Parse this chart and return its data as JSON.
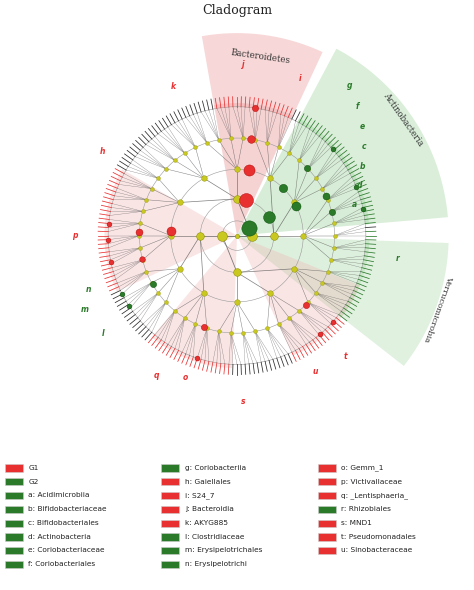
{
  "title": "Cladogram",
  "title_fontsize": 9,
  "background_color": "#ffffff",
  "red_color": "#e83030",
  "green_color": "#2a7a2a",
  "dark_green": "#1a5a1a",
  "yellow_color": "#b8b820",
  "yellow_node": "#c8c820",
  "yellow_edge": "#909000",
  "light_red": "#f0b0b0",
  "light_green": "#a8d8a8",
  "line_color": "#555555",
  "ring_radii": [
    0.08,
    0.2,
    0.36,
    0.53,
    0.7
  ],
  "n_leaves": 200,
  "legend_items": [
    {
      "label": "G1",
      "color": "#e83030",
      "col": 0
    },
    {
      "label": "G2",
      "color": "#2a7a2a",
      "col": 0
    },
    {
      "label": "a: Acidimicrobiia",
      "color": "#2a7a2a",
      "col": 0
    },
    {
      "label": "b: Bifidobacteriaceae",
      "color": "#2a7a2a",
      "col": 0
    },
    {
      "label": "c: Bifidobacteriales",
      "color": "#2a7a2a",
      "col": 0
    },
    {
      "label": "d: Actinobacteria",
      "color": "#2a7a2a",
      "col": 0
    },
    {
      "label": "e: Coriobacteriaceae",
      "color": "#2a7a2a",
      "col": 0
    },
    {
      "label": "f: Coriobacteriales",
      "color": "#2a7a2a",
      "col": 0
    },
    {
      "label": "g: Coriobacteriia",
      "color": "#2a7a2a",
      "col": 1
    },
    {
      "label": "h: Gaiellales",
      "color": "#e83030",
      "col": 1
    },
    {
      "label": "i: S24_7",
      "color": "#e83030",
      "col": 1
    },
    {
      "label": "j: Bacteroidia",
      "color": "#e83030",
      "col": 1
    },
    {
      "label": "k: AKYG885",
      "color": "#e83030",
      "col": 1
    },
    {
      "label": "l: Clostridiaceae",
      "color": "#2a7a2a",
      "col": 1
    },
    {
      "label": "m: Erysipelotrichales",
      "color": "#2a7a2a",
      "col": 1
    },
    {
      "label": "n: Erysipelotrichi",
      "color": "#2a7a2a",
      "col": 1
    },
    {
      "label": "o: Gemm_1",
      "color": "#e83030",
      "col": 2
    },
    {
      "label": "p: Victivallaceae",
      "color": "#e83030",
      "col": 2
    },
    {
      "label": "q: _Lentisphaeria_",
      "color": "#e83030",
      "col": 2
    },
    {
      "label": "r: Rhizobiales",
      "color": "#2a7a2a",
      "col": 2
    },
    {
      "label": "s: MND1",
      "color": "#e83030",
      "col": 2
    },
    {
      "label": "t: Pseudomonadales",
      "color": "#e83030",
      "col": 2
    },
    {
      "label": "u: Sinobacteraceae",
      "color": "#e83030",
      "col": 2
    }
  ]
}
